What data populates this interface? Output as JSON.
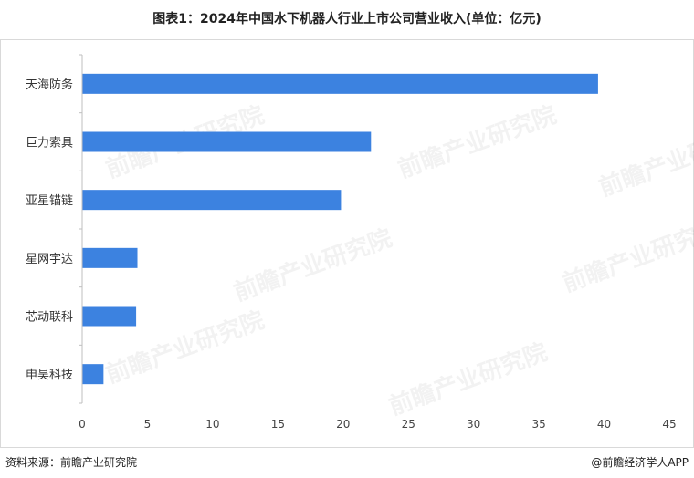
{
  "title": "图表1：2024年中国水下机器人行业上市公司营业收入(单位：亿元)",
  "source": "资料来源：前瞻产业研究院",
  "credit": "@前瞻经济学人APP",
  "watermark": "前瞻产业研究院",
  "colors": {
    "bar": "#3c82e0",
    "axis": "#bfbfbf"
  },
  "chart_data": {
    "type": "bar",
    "orientation": "horizontal",
    "title": "图表1：2024年中国水下机器人行业上市公司营业收入(单位：亿元)",
    "categories": [
      "天海防务",
      "巨力索具",
      "亚星锚链",
      "星网宇达",
      "芯动联科",
      "申昊科技"
    ],
    "values": [
      39.5,
      22.1,
      19.8,
      4.2,
      4.1,
      1.6
    ],
    "xlim": [
      0,
      45
    ],
    "xticks": [
      0,
      5,
      10,
      15,
      20,
      25,
      30,
      35,
      40,
      45
    ],
    "grid": false,
    "legend": "none"
  }
}
